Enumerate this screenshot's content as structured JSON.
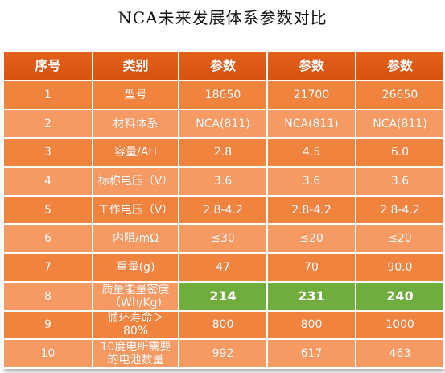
{
  "title": "NCA未来发展体系参数对比",
  "chart_data": {
    "type": "table",
    "columns": [
      "序号",
      "类别",
      "参数",
      "参数",
      "参数"
    ],
    "rows": [
      [
        "1",
        "型号",
        "18650",
        "21700",
        "26650"
      ],
      [
        "2",
        "材料体系",
        "NCA(811)",
        "NCA(811)",
        "NCA(811)"
      ],
      [
        "3",
        "容量/AH",
        "2.8",
        "4.5",
        "6.0"
      ],
      [
        "4",
        "标称电压（V）",
        "3.6",
        "3.6",
        "3.6"
      ],
      [
        "5",
        "工作电压（V）",
        "2.8-4.2",
        "2.8-4.2",
        "2.8-4.2"
      ],
      [
        "6",
        "内阻/mΩ",
        "≤30",
        "≤20",
        "≤20"
      ],
      [
        "7",
        "重量(g)",
        "47",
        "70",
        "90.0"
      ],
      [
        "8",
        "质量能量密度（Wh/Kg)",
        "214",
        "231",
        "240"
      ],
      [
        "9",
        "循环寿命＞80%",
        "800",
        "800",
        "1000"
      ],
      [
        "10",
        "10度电所需要的电池数量",
        "992",
        "617",
        "463"
      ]
    ],
    "highlight_row": 8,
    "colors": {
      "header": "#dc5613",
      "row_odd": "#f0843f",
      "row_even": "#f49a62",
      "highlight": "#6fae3c",
      "text": "#ffffff"
    }
  }
}
